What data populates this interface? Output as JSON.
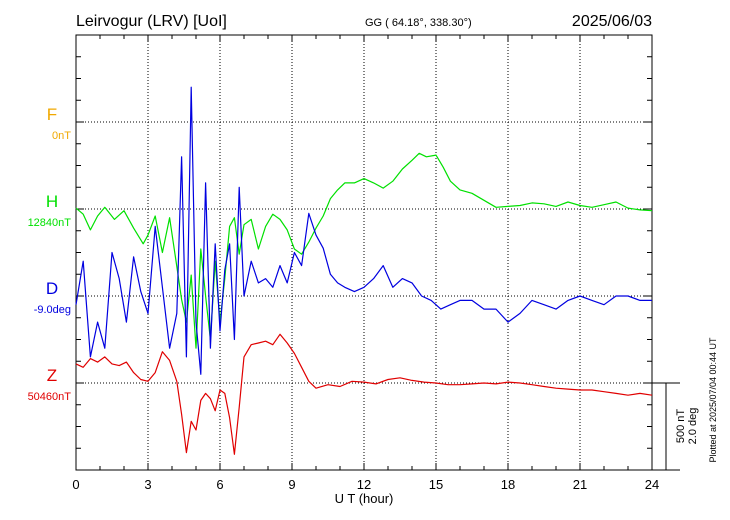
{
  "header": {
    "station": "Leirvogur (LRV)  [UoI]",
    "coords": "GG ( 64.18°, 338.30°)",
    "date": "2025/06/03"
  },
  "footer": {
    "plotted": "Plotted at 2025/07/04 00:44 UT"
  },
  "chart_data": {
    "type": "line",
    "xlabel": "U T (hour)",
    "xlim": [
      0,
      24
    ],
    "xticks": [
      "0",
      "3",
      "6",
      "9",
      "12",
      "15",
      "18",
      "21",
      "24"
    ],
    "scale_bar": {
      "line1": "500 nT",
      "line2": "2.0 deg"
    },
    "series": [
      {
        "name": "F",
        "baseline_label": "0nT",
        "color": "#f0a800",
        "points": []
      },
      {
        "name": "H",
        "baseline_label": "12840nT",
        "color": "#00e000",
        "points": [
          [
            0,
            5
          ],
          [
            0.3,
            -30
          ],
          [
            0.6,
            -120
          ],
          [
            0.9,
            -40
          ],
          [
            1.2,
            10
          ],
          [
            1.6,
            -60
          ],
          [
            2.0,
            -10
          ],
          [
            2.4,
            -110
          ],
          [
            2.8,
            -200
          ],
          [
            3.0,
            -150
          ],
          [
            3.3,
            -40
          ],
          [
            3.6,
            -250
          ],
          [
            3.9,
            -50
          ],
          [
            4.2,
            -330
          ],
          [
            4.4,
            -520
          ],
          [
            4.6,
            -650
          ],
          [
            4.8,
            -380
          ],
          [
            5.0,
            -800
          ],
          [
            5.2,
            -230
          ],
          [
            5.4,
            -500
          ],
          [
            5.6,
            -750
          ],
          [
            5.8,
            -300
          ],
          [
            6.0,
            -650
          ],
          [
            6.2,
            -400
          ],
          [
            6.4,
            -100
          ],
          [
            6.6,
            -50
          ],
          [
            6.8,
            -260
          ],
          [
            7.0,
            -90
          ],
          [
            7.3,
            -60
          ],
          [
            7.6,
            -230
          ],
          [
            7.9,
            -100
          ],
          [
            8.2,
            -30
          ],
          [
            8.5,
            -60
          ],
          [
            8.8,
            -120
          ],
          [
            9.1,
            -230
          ],
          [
            9.4,
            -260
          ],
          [
            9.7,
            -190
          ],
          [
            10.0,
            -110
          ],
          [
            10.3,
            -40
          ],
          [
            10.6,
            60
          ],
          [
            10.9,
            110
          ],
          [
            11.2,
            150
          ],
          [
            11.6,
            150
          ],
          [
            12.0,
            175
          ],
          [
            12.4,
            150
          ],
          [
            12.8,
            120
          ],
          [
            13.2,
            160
          ],
          [
            13.6,
            230
          ],
          [
            14.0,
            280
          ],
          [
            14.3,
            320
          ],
          [
            14.6,
            300
          ],
          [
            15.0,
            310
          ],
          [
            15.3,
            240
          ],
          [
            15.6,
            160
          ],
          [
            16.0,
            110
          ],
          [
            16.5,
            90
          ],
          [
            17.0,
            50
          ],
          [
            17.5,
            10
          ],
          [
            18.0,
            15
          ],
          [
            18.5,
            20
          ],
          [
            19.0,
            35
          ],
          [
            19.5,
            30
          ],
          [
            20.0,
            15
          ],
          [
            20.5,
            40
          ],
          [
            21.0,
            20
          ],
          [
            21.5,
            10
          ],
          [
            22.0,
            25
          ],
          [
            22.5,
            40
          ],
          [
            23.0,
            5
          ],
          [
            23.5,
            -5
          ],
          [
            24.0,
            -10
          ]
        ]
      },
      {
        "name": "D",
        "baseline_label": "-9.0deg",
        "color": "#0000e0",
        "points": [
          [
            0,
            -0.2
          ],
          [
            0.3,
            0.8
          ],
          [
            0.6,
            -1.4
          ],
          [
            0.9,
            -0.6
          ],
          [
            1.2,
            -1.2
          ],
          [
            1.5,
            1.0
          ],
          [
            1.8,
            0.4
          ],
          [
            2.1,
            -0.6
          ],
          [
            2.4,
            0.9
          ],
          [
            2.7,
            0.1
          ],
          [
            3.0,
            -0.4
          ],
          [
            3.3,
            1.6
          ],
          [
            3.6,
            0.2
          ],
          [
            3.9,
            -1.2
          ],
          [
            4.2,
            -0.4
          ],
          [
            4.4,
            3.2
          ],
          [
            4.6,
            -1.4
          ],
          [
            4.8,
            4.8
          ],
          [
            5.0,
            -0.6
          ],
          [
            5.2,
            -1.8
          ],
          [
            5.4,
            2.6
          ],
          [
            5.6,
            -1.2
          ],
          [
            5.8,
            1.2
          ],
          [
            6.0,
            -0.8
          ],
          [
            6.2,
            0.6
          ],
          [
            6.4,
            1.2
          ],
          [
            6.6,
            -1.0
          ],
          [
            6.8,
            2.5
          ],
          [
            7.0,
            0.0
          ],
          [
            7.3,
            0.8
          ],
          [
            7.6,
            0.3
          ],
          [
            7.9,
            0.4
          ],
          [
            8.2,
            0.2
          ],
          [
            8.5,
            0.7
          ],
          [
            8.8,
            0.3
          ],
          [
            9.1,
            1.0
          ],
          [
            9.4,
            0.7
          ],
          [
            9.7,
            1.9
          ],
          [
            10.0,
            1.4
          ],
          [
            10.3,
            1.1
          ],
          [
            10.6,
            0.5
          ],
          [
            10.9,
            0.3
          ],
          [
            11.2,
            0.2
          ],
          [
            11.6,
            0.1
          ],
          [
            12.0,
            0.2
          ],
          [
            12.4,
            0.4
          ],
          [
            12.8,
            0.7
          ],
          [
            13.2,
            0.2
          ],
          [
            13.6,
            0.4
          ],
          [
            14.0,
            0.3
          ],
          [
            14.4,
            0.0
          ],
          [
            14.8,
            -0.1
          ],
          [
            15.2,
            -0.3
          ],
          [
            15.6,
            -0.2
          ],
          [
            16.0,
            -0.1
          ],
          [
            16.5,
            -0.1
          ],
          [
            17.0,
            -0.3
          ],
          [
            17.5,
            -0.3
          ],
          [
            18.0,
            -0.6
          ],
          [
            18.5,
            -0.4
          ],
          [
            19.0,
            -0.1
          ],
          [
            19.5,
            -0.2
          ],
          [
            20.0,
            -0.3
          ],
          [
            20.5,
            -0.1
          ],
          [
            21.0,
            0.0
          ],
          [
            21.5,
            -0.1
          ],
          [
            22.0,
            -0.2
          ],
          [
            22.5,
            0.0
          ],
          [
            23.0,
            0.0
          ],
          [
            23.5,
            -0.1
          ],
          [
            24.0,
            -0.1
          ]
        ]
      },
      {
        "name": "Z",
        "baseline_label": "50460nT",
        "color": "#e00000",
        "points": [
          [
            0,
            110
          ],
          [
            0.3,
            90
          ],
          [
            0.6,
            140
          ],
          [
            0.9,
            120
          ],
          [
            1.2,
            150
          ],
          [
            1.5,
            110
          ],
          [
            1.8,
            100
          ],
          [
            2.1,
            120
          ],
          [
            2.4,
            60
          ],
          [
            2.7,
            20
          ],
          [
            3.0,
            10
          ],
          [
            3.3,
            60
          ],
          [
            3.6,
            180
          ],
          [
            3.9,
            130
          ],
          [
            4.2,
            10
          ],
          [
            4.4,
            -180
          ],
          [
            4.6,
            -400
          ],
          [
            4.8,
            -220
          ],
          [
            5.0,
            -270
          ],
          [
            5.2,
            -100
          ],
          [
            5.4,
            -60
          ],
          [
            5.6,
            -90
          ],
          [
            5.8,
            -160
          ],
          [
            6.0,
            -40
          ],
          [
            6.2,
            -60
          ],
          [
            6.4,
            -200
          ],
          [
            6.6,
            -410
          ],
          [
            6.8,
            -140
          ],
          [
            7.0,
            150
          ],
          [
            7.3,
            220
          ],
          [
            7.6,
            230
          ],
          [
            7.9,
            240
          ],
          [
            8.2,
            220
          ],
          [
            8.5,
            280
          ],
          [
            8.8,
            230
          ],
          [
            9.1,
            170
          ],
          [
            9.4,
            90
          ],
          [
            9.7,
            10
          ],
          [
            10.0,
            -30
          ],
          [
            10.5,
            -10
          ],
          [
            11.0,
            -20
          ],
          [
            11.5,
            10
          ],
          [
            12.0,
            5
          ],
          [
            12.5,
            -5
          ],
          [
            13.0,
            20
          ],
          [
            13.5,
            30
          ],
          [
            14.0,
            15
          ],
          [
            14.5,
            5
          ],
          [
            15.0,
            0
          ],
          [
            15.5,
            -10
          ],
          [
            16.0,
            -10
          ],
          [
            16.5,
            -5
          ],
          [
            17.0,
            0
          ],
          [
            17.5,
            -5
          ],
          [
            18.0,
            5
          ],
          [
            18.5,
            0
          ],
          [
            19.0,
            -10
          ],
          [
            19.5,
            -20
          ],
          [
            20.0,
            -30
          ],
          [
            20.5,
            -35
          ],
          [
            21.0,
            -40
          ],
          [
            21.5,
            -40
          ],
          [
            22.0,
            -50
          ],
          [
            22.5,
            -60
          ],
          [
            23.0,
            -70
          ],
          [
            23.5,
            -60
          ],
          [
            24.0,
            -70
          ]
        ]
      }
    ]
  }
}
